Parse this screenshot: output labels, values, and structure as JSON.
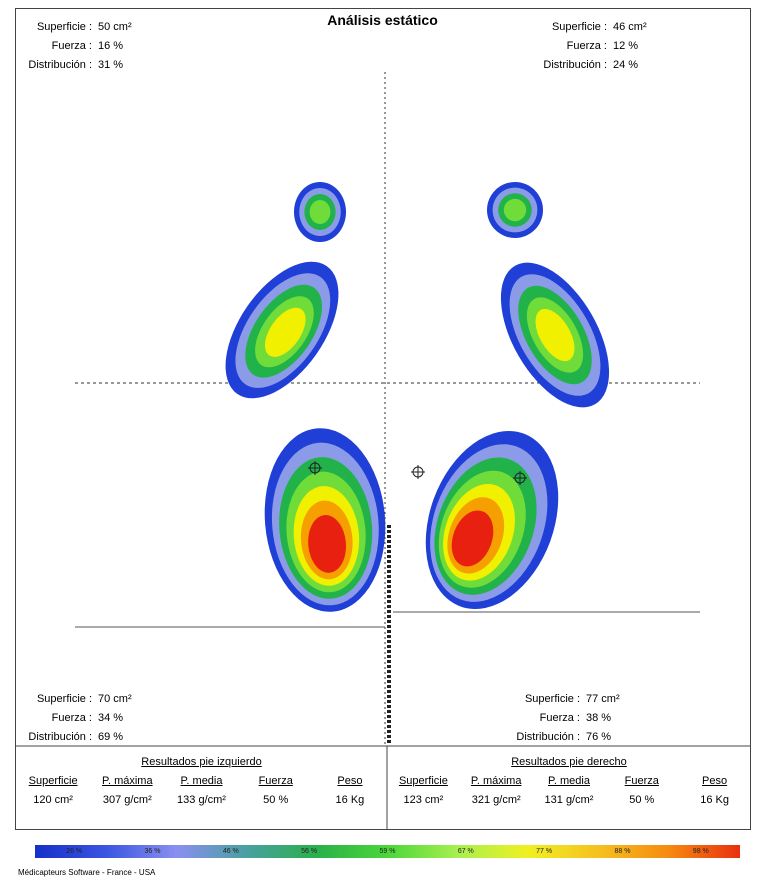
{
  "header": {
    "title": "Análisis estático"
  },
  "zones": {
    "top_left": [
      {
        "label": "Superficie :",
        "value": "50 cm²"
      },
      {
        "label": "Fuerza :",
        "value": "16 %"
      },
      {
        "label": "Distribución :",
        "value": "31 %"
      }
    ],
    "top_right": [
      {
        "label": "Superficie :",
        "value": "46 cm²"
      },
      {
        "label": "Fuerza :",
        "value": "12 %"
      },
      {
        "label": "Distribución :",
        "value": "24 %"
      }
    ],
    "bottom_left": [
      {
        "label": "Superficie :",
        "value": "70 cm²"
      },
      {
        "label": "Fuerza :",
        "value": "34 %"
      },
      {
        "label": "Distribución :",
        "value": "69 %"
      }
    ],
    "bottom_right": [
      {
        "label": "Superficie :",
        "value": "77 cm²"
      },
      {
        "label": "Fuerza :",
        "value": "38 %"
      },
      {
        "label": "Distribución :",
        "value": "76 %"
      }
    ]
  },
  "results": {
    "left": {
      "title": "Resultados pie izquierdo",
      "headers": [
        "Superficie",
        "P. máxima",
        "P. media",
        "Fuerza",
        "Peso"
      ],
      "values": [
        "120 cm²",
        "307 g/cm²",
        "133 g/cm²",
        "50 %",
        "16 Kg"
      ]
    },
    "right": {
      "title": "Resultados pie derecho",
      "headers": [
        "Superficie",
        "P. máxima",
        "P. media",
        "Fuerza",
        "Peso"
      ],
      "values": [
        "123 cm²",
        "321 g/cm²",
        "131 g/cm²",
        "50 %",
        "16 Kg"
      ]
    }
  },
  "scale": {
    "labels": [
      "26 %",
      "36 %",
      "46 %",
      "56 %",
      "59 %",
      "67 %",
      "77 %",
      "88 %",
      "98 %"
    ]
  },
  "footer": {
    "text": "Médicapteurs Software - France - USA"
  }
}
